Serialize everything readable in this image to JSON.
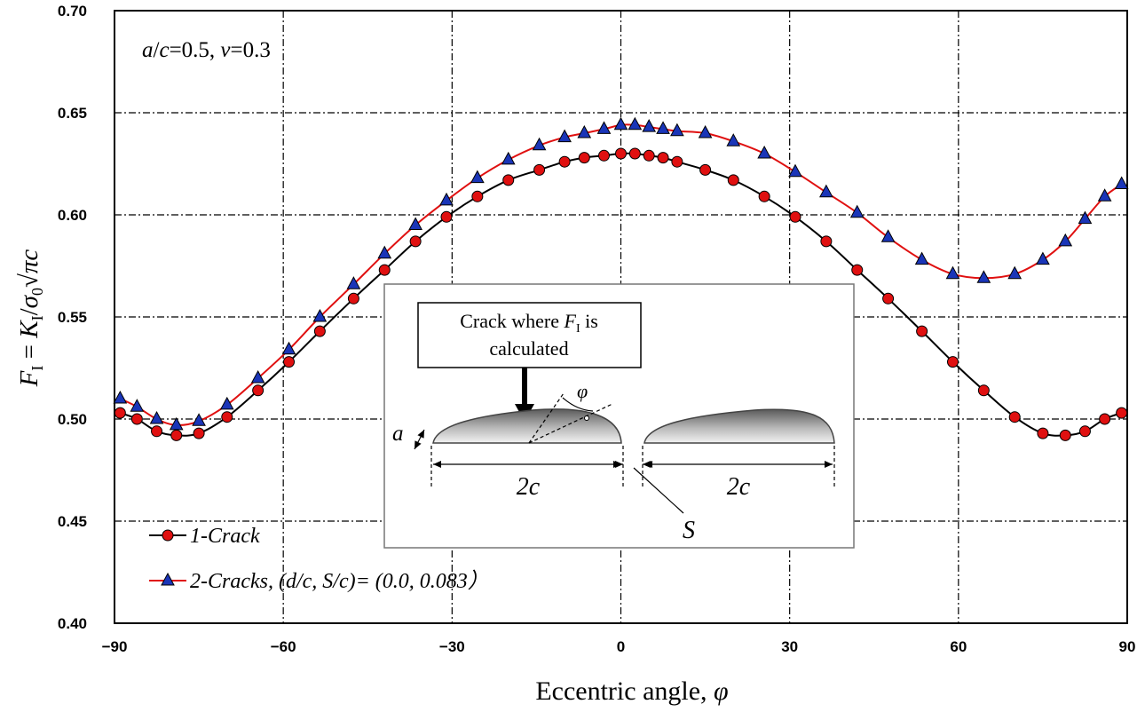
{
  "chart_data": {
    "type": "line",
    "title": "",
    "xlabel": "Eccentric angle, ",
    "xlabel_symbol": "φ",
    "ylabel_parts": {
      "F": "F",
      "sub_I": "I",
      "eq": " = ",
      "K": "K",
      "sigma": "σ",
      "sub0": "0",
      "root": "√",
      "pic": "πc"
    },
    "xlim": [
      -90,
      90
    ],
    "ylim": [
      0.4,
      0.7
    ],
    "xticks": [
      -90,
      -60,
      -30,
      0,
      30,
      60,
      90
    ],
    "xtick_labels": [
      "−90",
      "−60",
      "−30",
      "0",
      "30",
      "60",
      "90"
    ],
    "yticks": [
      0.4,
      0.45,
      0.5,
      0.55,
      0.6,
      0.65,
      0.7
    ],
    "ytick_labels": [
      "0.40",
      "0.45",
      "0.50",
      "0.55",
      "0.60",
      "0.65",
      "0.70"
    ],
    "grid": true,
    "legend_position": "bottom-left",
    "series": [
      {
        "name": "1-Crack",
        "color": "#000000",
        "marker": "circle",
        "marker_color": "#e01010",
        "x": [
          -89,
          -86,
          -82.5,
          -79,
          -75,
          -70,
          -64.5,
          -59,
          -53.5,
          -47.5,
          -42,
          -36.5,
          -31,
          -25.5,
          -20,
          -14.5,
          -10,
          -6.5,
          -3,
          0,
          2.5,
          5,
          7.5,
          10,
          15,
          20,
          25.5,
          31,
          36.5,
          42,
          47.5,
          53.5,
          59,
          64.5,
          70,
          75,
          79,
          82.5,
          86,
          89
        ],
        "values": [
          0.503,
          0.5,
          0.494,
          0.492,
          0.493,
          0.501,
          0.514,
          0.528,
          0.543,
          0.559,
          0.573,
          0.587,
          0.599,
          0.609,
          0.617,
          0.622,
          0.626,
          0.628,
          0.629,
          0.63,
          0.63,
          0.629,
          0.628,
          0.626,
          0.622,
          0.617,
          0.609,
          0.599,
          0.587,
          0.573,
          0.559,
          0.543,
          0.528,
          0.514,
          0.501,
          0.493,
          0.492,
          0.494,
          0.5,
          0.503
        ]
      },
      {
        "name": "2-Cracks, (d/c, S/c)= (0.0,  0.083）",
        "color": "#e01010",
        "marker": "triangle",
        "marker_color": "#1a35b8",
        "x": [
          -89,
          -86,
          -82.5,
          -79,
          -75,
          -70,
          -64.5,
          -59,
          -53.5,
          -47.5,
          -42,
          -36.5,
          -31,
          -25.5,
          -20,
          -14.5,
          -10,
          -6.5,
          -3,
          0,
          2.5,
          5,
          7.5,
          10,
          15,
          20,
          25.5,
          31,
          36.5,
          42,
          47.5,
          53.5,
          59,
          64.5,
          70,
          75,
          79,
          82.5,
          86,
          89
        ],
        "values": [
          0.51,
          0.506,
          0.5,
          0.497,
          0.499,
          0.507,
          0.52,
          0.534,
          0.55,
          0.566,
          0.581,
          0.595,
          0.607,
          0.618,
          0.627,
          0.634,
          0.638,
          0.64,
          0.642,
          0.644,
          0.644,
          0.643,
          0.642,
          0.641,
          0.64,
          0.636,
          0.63,
          0.621,
          0.611,
          0.601,
          0.589,
          0.578,
          0.571,
          0.569,
          0.571,
          0.578,
          0.587,
          0.598,
          0.609,
          0.615
        ]
      }
    ],
    "annotations": {
      "params": {
        "a": "a",
        "ratio": "/",
        "c": "c",
        "eq1": "=0.5, ",
        "nu": "ν",
        "eq2": "=0.3"
      },
      "inset": {
        "callout_line1_pre": "Crack where ",
        "callout_F": "F",
        "callout_sub": "I",
        "callout_line1_post": " is",
        "callout_line2": "calculated",
        "label_a": "a",
        "label_phi": "φ",
        "label_2c_left": "2c",
        "label_2c_right": "2c",
        "label_S": "S"
      }
    }
  }
}
